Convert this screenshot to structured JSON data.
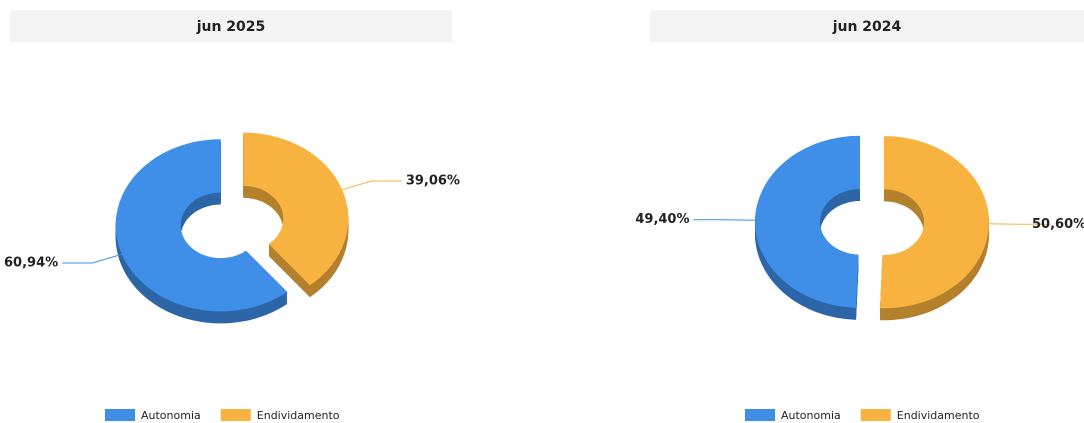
{
  "chart_data": [
    {
      "type": "pie",
      "title": "jun 2025",
      "categories": [
        "Autonomia",
        "Endividamento"
      ],
      "values": [
        60.94,
        39.06
      ],
      "value_labels": [
        "60,94%",
        "39,06%"
      ],
      "colors": [
        "#3f8ee8",
        "#f8b23f"
      ]
    },
    {
      "type": "pie",
      "title": "jun 2024",
      "categories": [
        "Autonomia",
        "Endividamento"
      ],
      "values": [
        49.4,
        50.6
      ],
      "value_labels": [
        "49,40%",
        "50,60%"
      ],
      "colors": [
        "#3f8ee8",
        "#f8b23f"
      ]
    }
  ]
}
